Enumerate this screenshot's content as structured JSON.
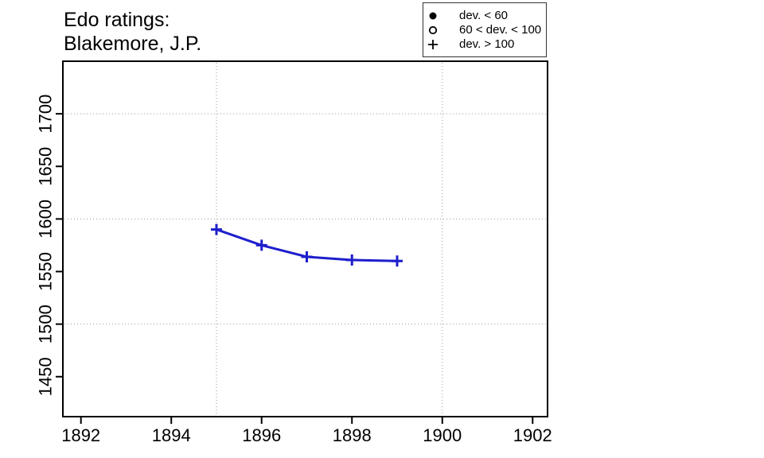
{
  "title": {
    "line1": "Edo ratings:",
    "line2": "Blakemore, J.P."
  },
  "legend": {
    "items": [
      {
        "icon": "filled-circle-icon",
        "label": "dev. < 60"
      },
      {
        "icon": "open-circle-icon",
        "label": "60 < dev. < 100"
      },
      {
        "icon": "plus-icon",
        "label": "dev. > 100"
      }
    ]
  },
  "chart_data": {
    "type": "line",
    "title": "Edo ratings: Blakemore, J.P.",
    "series": [
      {
        "name": "Edo rating (dev. > 100 points)",
        "marker": "plus",
        "x": [
          1895,
          1896,
          1897,
          1898,
          1899
        ],
        "y": [
          1590,
          1575,
          1564,
          1561,
          1560
        ]
      }
    ],
    "xlabel": "",
    "ylabel": "",
    "xlim": [
      1891.6,
      1902.33
    ],
    "ylim": [
      1412,
      1750
    ],
    "x_ticks": [
      1892,
      1894,
      1896,
      1898,
      1900,
      1902
    ],
    "y_ticks": [
      1450,
      1500,
      1550,
      1600,
      1650,
      1700
    ],
    "x_gridlines": [
      1895,
      1900
    ],
    "y_gridlines": [
      1500,
      1600,
      1700
    ],
    "grid_on": true,
    "legend_position": "top-right",
    "colors": {
      "line": "#1e1ecd",
      "grid": "#999999",
      "axis": "#000000",
      "background": "#ffffff"
    }
  }
}
